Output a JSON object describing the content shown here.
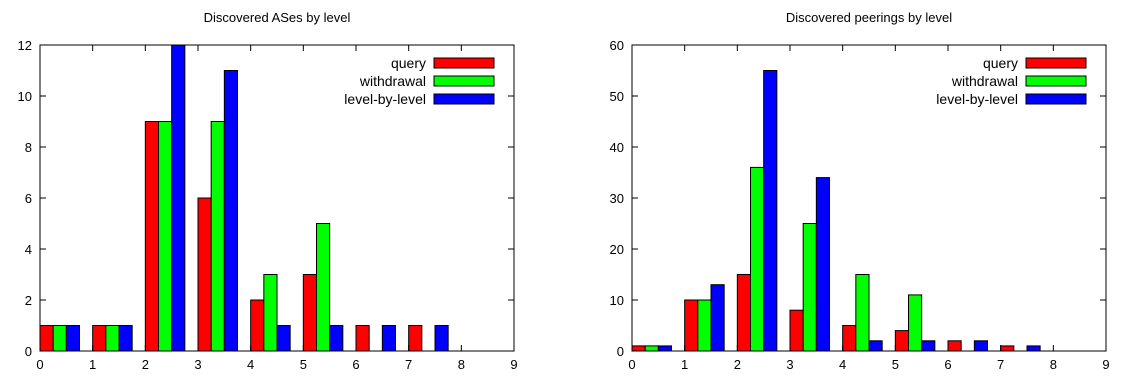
{
  "chart_data": [
    {
      "type": "bar",
      "title": "Discovered ASes by level",
      "xlabel": "",
      "ylabel": "",
      "xlim": [
        0,
        9
      ],
      "ylim": [
        0,
        12
      ],
      "xticks": [
        "0",
        "1",
        "2",
        "3",
        "4",
        "5",
        "6",
        "7",
        "8",
        "9"
      ],
      "yticks": [
        "0",
        "2",
        "4",
        "6",
        "8",
        "10",
        "12"
      ],
      "categories": [
        "0",
        "1",
        "2",
        "3",
        "4",
        "5",
        "6",
        "7",
        "8"
      ],
      "grid": false,
      "legend_position": "top-right",
      "series": [
        {
          "name": "query",
          "color": "#ff0000",
          "values": [
            1,
            1,
            9,
            6,
            2,
            3,
            1,
            1,
            0
          ]
        },
        {
          "name": "withdrawal",
          "color": "#00ff00",
          "values": [
            1,
            1,
            9,
            9,
            3,
            5,
            0,
            0,
            0
          ]
        },
        {
          "name": "level-by-level",
          "color": "#0000ff",
          "values": [
            1,
            1,
            12,
            11,
            1,
            1,
            1,
            1,
            0
          ]
        }
      ]
    },
    {
      "type": "bar",
      "title": "Discovered peerings by level",
      "xlabel": "",
      "ylabel": "",
      "xlim": [
        0,
        9
      ],
      "ylim": [
        0,
        60
      ],
      "xticks": [
        "0",
        "1",
        "2",
        "3",
        "4",
        "5",
        "6",
        "7",
        "8",
        "9"
      ],
      "yticks": [
        "0",
        "10",
        "20",
        "30",
        "40",
        "50",
        "60"
      ],
      "categories": [
        "0",
        "1",
        "2",
        "3",
        "4",
        "5",
        "6",
        "7",
        "8"
      ],
      "grid": false,
      "legend_position": "top-right",
      "series": [
        {
          "name": "query",
          "color": "#ff0000",
          "values": [
            1,
            10,
            15,
            8,
            5,
            4,
            2,
            1,
            0
          ]
        },
        {
          "name": "withdrawal",
          "color": "#00ff00",
          "values": [
            1,
            10,
            36,
            25,
            15,
            11,
            0,
            0,
            0
          ]
        },
        {
          "name": "level-by-level",
          "color": "#0000ff",
          "values": [
            1,
            13,
            55,
            34,
            2,
            2,
            2,
            1,
            0
          ]
        }
      ]
    }
  ]
}
